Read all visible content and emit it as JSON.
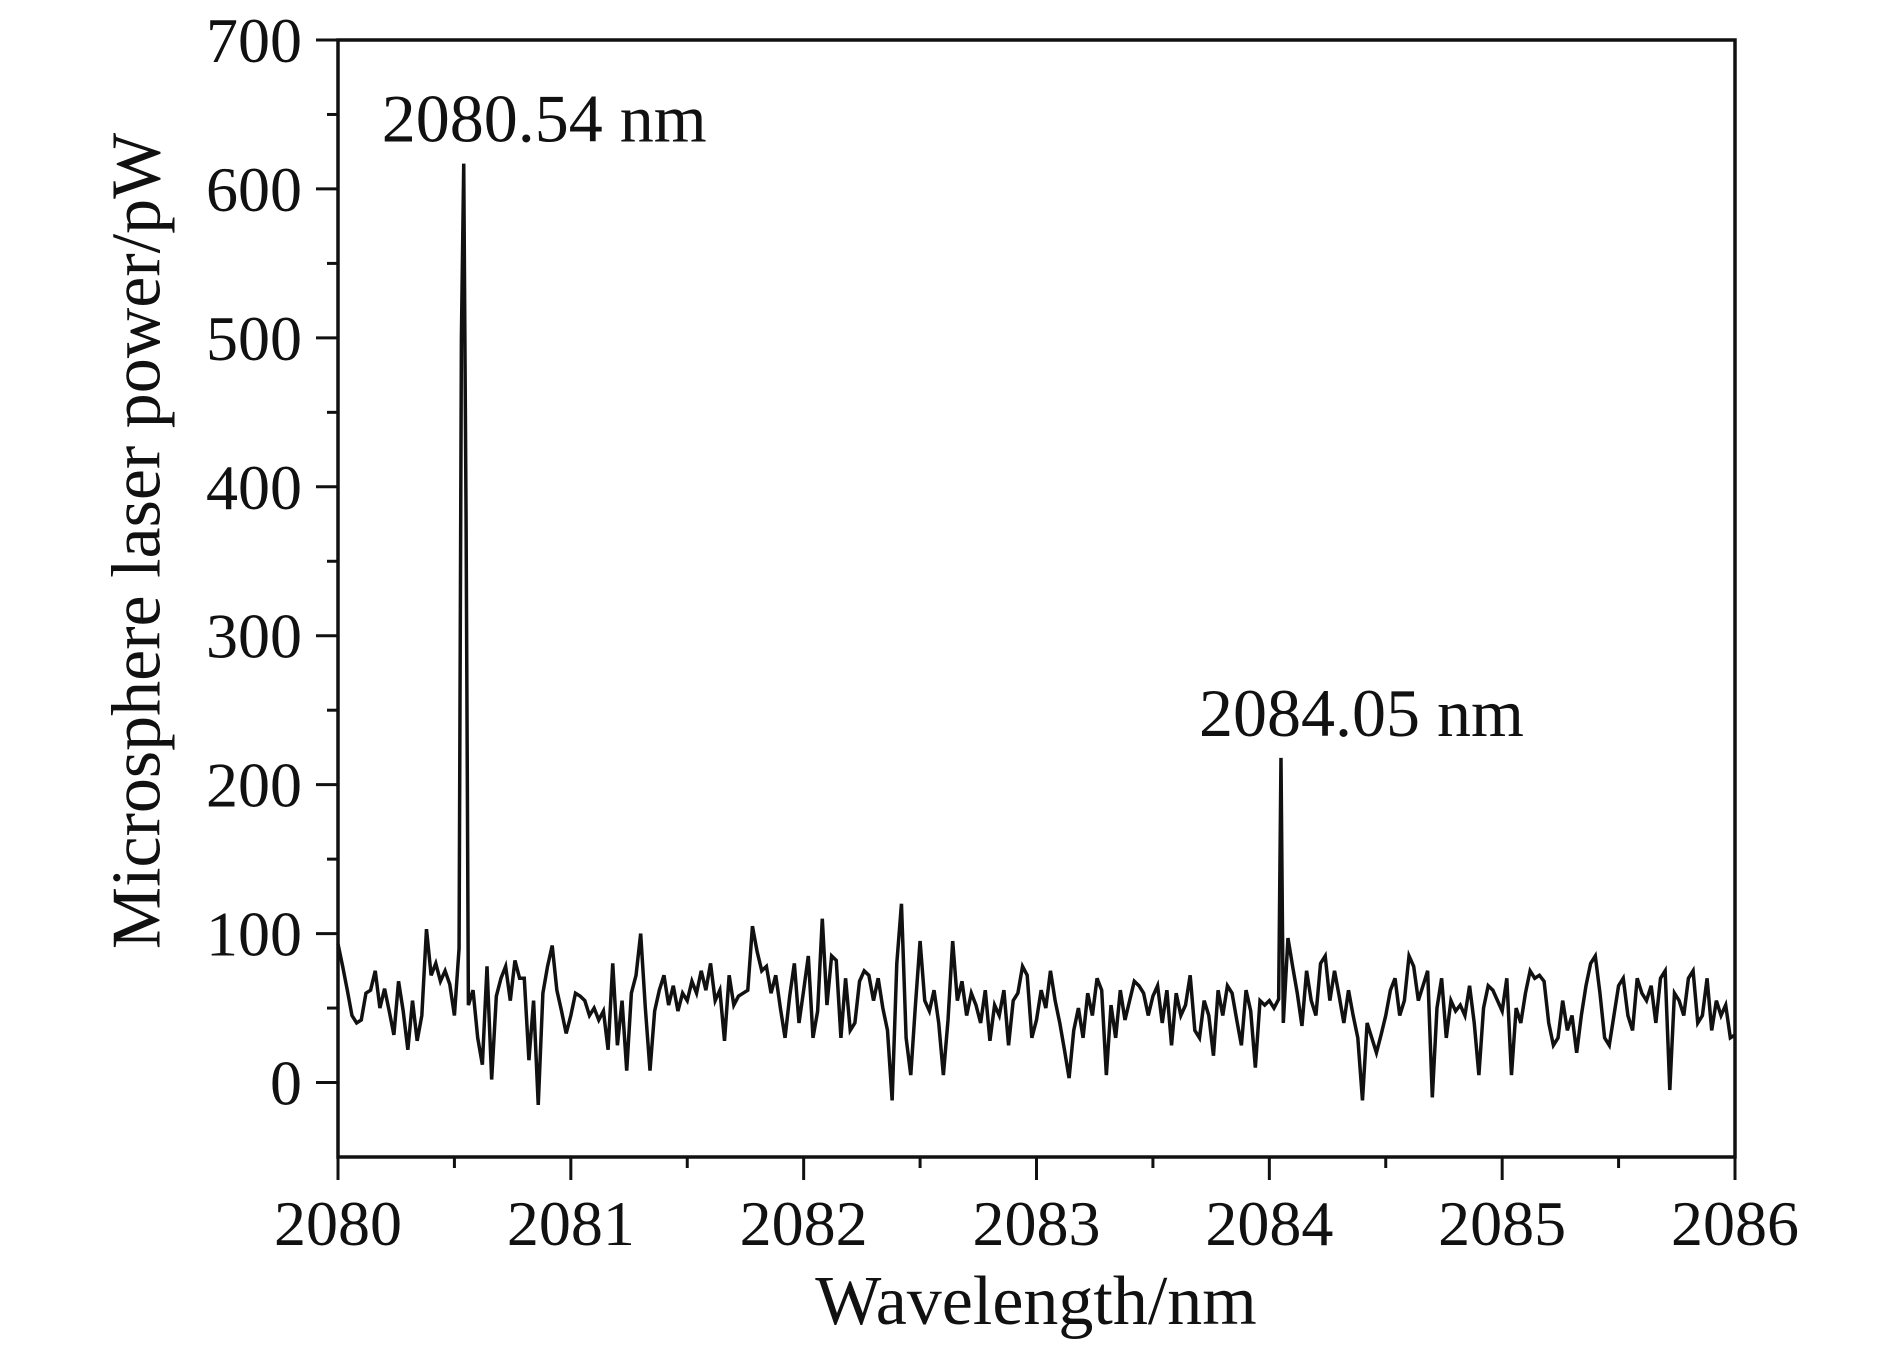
{
  "chart_data": {
    "type": "line",
    "title": "",
    "xlabel": "Wavelength/nm",
    "ylabel": "Microsphere laser power/pW",
    "xlim": [
      2080,
      2086
    ],
    "ylim": [
      -50,
      700
    ],
    "xticks": [
      2080,
      2081,
      2082,
      2083,
      2084,
      2085,
      2086
    ],
    "yticks": [
      0,
      100,
      200,
      300,
      400,
      500,
      600,
      700
    ],
    "grid": false,
    "legend": "none",
    "line_color": "#111111",
    "annotations": [
      {
        "text": "2080.54 nm",
        "x": 2080.54,
        "y": 617
      },
      {
        "text": "2084.05 nm",
        "x": 2084.05,
        "y": 218
      }
    ],
    "series": [
      {
        "points": [
          [
            2080.0,
            93
          ],
          [
            2080.02,
            78
          ],
          [
            2080.04,
            62
          ],
          [
            2080.06,
            45
          ],
          [
            2080.08,
            40
          ],
          [
            2080.1,
            42
          ],
          [
            2080.12,
            60
          ],
          [
            2080.14,
            62
          ],
          [
            2080.16,
            75
          ],
          [
            2080.18,
            50
          ],
          [
            2080.2,
            63
          ],
          [
            2080.22,
            48
          ],
          [
            2080.24,
            32
          ],
          [
            2080.26,
            68
          ],
          [
            2080.28,
            48
          ],
          [
            2080.3,
            22
          ],
          [
            2080.32,
            55
          ],
          [
            2080.34,
            28
          ],
          [
            2080.36,
            45
          ],
          [
            2080.38,
            103
          ],
          [
            2080.4,
            72
          ],
          [
            2080.42,
            80
          ],
          [
            2080.44,
            68
          ],
          [
            2080.46,
            75
          ],
          [
            2080.48,
            66
          ],
          [
            2080.5,
            45
          ],
          [
            2080.52,
            90
          ],
          [
            2080.53,
            500
          ],
          [
            2080.54,
            617
          ],
          [
            2080.55,
            380
          ],
          [
            2080.56,
            52
          ],
          [
            2080.58,
            62
          ],
          [
            2080.6,
            30
          ],
          [
            2080.62,
            12
          ],
          [
            2080.64,
            78
          ],
          [
            2080.66,
            2
          ],
          [
            2080.68,
            58
          ],
          [
            2080.7,
            70
          ],
          [
            2080.72,
            78
          ],
          [
            2080.74,
            55
          ],
          [
            2080.76,
            82
          ],
          [
            2080.78,
            70
          ],
          [
            2080.8,
            70
          ],
          [
            2080.82,
            15
          ],
          [
            2080.84,
            55
          ],
          [
            2080.86,
            -15
          ],
          [
            2080.88,
            60
          ],
          [
            2080.9,
            78
          ],
          [
            2080.92,
            92
          ],
          [
            2080.94,
            62
          ],
          [
            2080.96,
            48
          ],
          [
            2080.98,
            33
          ],
          [
            2081.0,
            45
          ],
          [
            2081.02,
            60
          ],
          [
            2081.04,
            58
          ],
          [
            2081.06,
            55
          ],
          [
            2081.08,
            45
          ],
          [
            2081.1,
            50
          ],
          [
            2081.12,
            42
          ],
          [
            2081.14,
            48
          ],
          [
            2081.16,
            22
          ],
          [
            2081.18,
            80
          ],
          [
            2081.2,
            25
          ],
          [
            2081.22,
            55
          ],
          [
            2081.24,
            8
          ],
          [
            2081.26,
            60
          ],
          [
            2081.28,
            72
          ],
          [
            2081.3,
            100
          ],
          [
            2081.32,
            50
          ],
          [
            2081.34,
            8
          ],
          [
            2081.36,
            48
          ],
          [
            2081.38,
            62
          ],
          [
            2081.4,
            72
          ],
          [
            2081.42,
            52
          ],
          [
            2081.44,
            65
          ],
          [
            2081.46,
            48
          ],
          [
            2081.48,
            60
          ],
          [
            2081.5,
            55
          ],
          [
            2081.52,
            68
          ],
          [
            2081.54,
            60
          ],
          [
            2081.56,
            75
          ],
          [
            2081.58,
            62
          ],
          [
            2081.6,
            80
          ],
          [
            2081.62,
            55
          ],
          [
            2081.64,
            62
          ],
          [
            2081.66,
            28
          ],
          [
            2081.68,
            72
          ],
          [
            2081.7,
            52
          ],
          [
            2081.72,
            58
          ],
          [
            2081.74,
            60
          ],
          [
            2081.76,
            62
          ],
          [
            2081.78,
            105
          ],
          [
            2081.8,
            88
          ],
          [
            2081.82,
            75
          ],
          [
            2081.84,
            78
          ],
          [
            2081.86,
            60
          ],
          [
            2081.88,
            72
          ],
          [
            2081.9,
            50
          ],
          [
            2081.92,
            30
          ],
          [
            2081.94,
            58
          ],
          [
            2081.96,
            80
          ],
          [
            2081.98,
            40
          ],
          [
            2082.0,
            62
          ],
          [
            2082.02,
            85
          ],
          [
            2082.04,
            30
          ],
          [
            2082.06,
            48
          ],
          [
            2082.08,
            110
          ],
          [
            2082.1,
            52
          ],
          [
            2082.12,
            85
          ],
          [
            2082.14,
            82
          ],
          [
            2082.16,
            30
          ],
          [
            2082.18,
            70
          ],
          [
            2082.2,
            35
          ],
          [
            2082.22,
            40
          ],
          [
            2082.24,
            68
          ],
          [
            2082.26,
            75
          ],
          [
            2082.28,
            72
          ],
          [
            2082.3,
            55
          ],
          [
            2082.32,
            70
          ],
          [
            2082.34,
            50
          ],
          [
            2082.36,
            35
          ],
          [
            2082.38,
            -12
          ],
          [
            2082.4,
            80
          ],
          [
            2082.42,
            120
          ],
          [
            2082.44,
            30
          ],
          [
            2082.46,
            5
          ],
          [
            2082.48,
            52
          ],
          [
            2082.5,
            95
          ],
          [
            2082.52,
            55
          ],
          [
            2082.54,
            48
          ],
          [
            2082.56,
            62
          ],
          [
            2082.58,
            40
          ],
          [
            2082.6,
            5
          ],
          [
            2082.62,
            42
          ],
          [
            2082.64,
            95
          ],
          [
            2082.66,
            55
          ],
          [
            2082.68,
            68
          ],
          [
            2082.7,
            45
          ],
          [
            2082.72,
            60
          ],
          [
            2082.74,
            52
          ],
          [
            2082.76,
            40
          ],
          [
            2082.78,
            62
          ],
          [
            2082.8,
            28
          ],
          [
            2082.82,
            52
          ],
          [
            2082.84,
            45
          ],
          [
            2082.86,
            62
          ],
          [
            2082.88,
            25
          ],
          [
            2082.9,
            55
          ],
          [
            2082.92,
            60
          ],
          [
            2082.94,
            78
          ],
          [
            2082.96,
            72
          ],
          [
            2082.98,
            30
          ],
          [
            2083.0,
            42
          ],
          [
            2083.02,
            62
          ],
          [
            2083.04,
            50
          ],
          [
            2083.06,
            75
          ],
          [
            2083.08,
            55
          ],
          [
            2083.1,
            40
          ],
          [
            2083.12,
            22
          ],
          [
            2083.14,
            3
          ],
          [
            2083.16,
            35
          ],
          [
            2083.18,
            50
          ],
          [
            2083.2,
            30
          ],
          [
            2083.22,
            60
          ],
          [
            2083.24,
            45
          ],
          [
            2083.26,
            70
          ],
          [
            2083.28,
            62
          ],
          [
            2083.3,
            5
          ],
          [
            2083.32,
            52
          ],
          [
            2083.34,
            30
          ],
          [
            2083.36,
            62
          ],
          [
            2083.38,
            42
          ],
          [
            2083.4,
            55
          ],
          [
            2083.42,
            68
          ],
          [
            2083.44,
            65
          ],
          [
            2083.46,
            60
          ],
          [
            2083.48,
            45
          ],
          [
            2083.5,
            58
          ],
          [
            2083.52,
            65
          ],
          [
            2083.54,
            40
          ],
          [
            2083.56,
            62
          ],
          [
            2083.58,
            25
          ],
          [
            2083.6,
            60
          ],
          [
            2083.62,
            45
          ],
          [
            2083.64,
            52
          ],
          [
            2083.66,
            72
          ],
          [
            2083.68,
            35
          ],
          [
            2083.7,
            30
          ],
          [
            2083.72,
            55
          ],
          [
            2083.74,
            45
          ],
          [
            2083.76,
            18
          ],
          [
            2083.78,
            62
          ],
          [
            2083.8,
            45
          ],
          [
            2083.82,
            65
          ],
          [
            2083.84,
            60
          ],
          [
            2083.86,
            42
          ],
          [
            2083.88,
            25
          ],
          [
            2083.9,
            62
          ],
          [
            2083.92,
            48
          ],
          [
            2083.94,
            10
          ],
          [
            2083.96,
            55
          ],
          [
            2083.98,
            52
          ],
          [
            2084.0,
            55
          ],
          [
            2084.02,
            50
          ],
          [
            2084.04,
            56
          ],
          [
            2084.05,
            218
          ],
          [
            2084.06,
            40
          ],
          [
            2084.08,
            97
          ],
          [
            2084.1,
            78
          ],
          [
            2084.12,
            60
          ],
          [
            2084.14,
            38
          ],
          [
            2084.16,
            75
          ],
          [
            2084.18,
            55
          ],
          [
            2084.2,
            45
          ],
          [
            2084.22,
            80
          ],
          [
            2084.24,
            85
          ],
          [
            2084.26,
            55
          ],
          [
            2084.28,
            75
          ],
          [
            2084.3,
            58
          ],
          [
            2084.32,
            40
          ],
          [
            2084.34,
            62
          ],
          [
            2084.36,
            45
          ],
          [
            2084.38,
            30
          ],
          [
            2084.4,
            -12
          ],
          [
            2084.42,
            40
          ],
          [
            2084.44,
            30
          ],
          [
            2084.46,
            20
          ],
          [
            2084.48,
            32
          ],
          [
            2084.5,
            45
          ],
          [
            2084.52,
            62
          ],
          [
            2084.54,
            70
          ],
          [
            2084.56,
            45
          ],
          [
            2084.58,
            55
          ],
          [
            2084.6,
            85
          ],
          [
            2084.62,
            78
          ],
          [
            2084.64,
            55
          ],
          [
            2084.66,
            65
          ],
          [
            2084.68,
            75
          ],
          [
            2084.7,
            -10
          ],
          [
            2084.72,
            50
          ],
          [
            2084.74,
            70
          ],
          [
            2084.76,
            30
          ],
          [
            2084.78,
            55
          ],
          [
            2084.8,
            48
          ],
          [
            2084.82,
            52
          ],
          [
            2084.84,
            45
          ],
          [
            2084.86,
            65
          ],
          [
            2084.88,
            40
          ],
          [
            2084.9,
            5
          ],
          [
            2084.92,
            50
          ],
          [
            2084.94,
            65
          ],
          [
            2084.96,
            62
          ],
          [
            2084.98,
            55
          ],
          [
            2085.0,
            48
          ],
          [
            2085.02,
            70
          ],
          [
            2085.04,
            5
          ],
          [
            2085.06,
            50
          ],
          [
            2085.08,
            40
          ],
          [
            2085.1,
            60
          ],
          [
            2085.12,
            75
          ],
          [
            2085.14,
            70
          ],
          [
            2085.16,
            72
          ],
          [
            2085.18,
            68
          ],
          [
            2085.2,
            40
          ],
          [
            2085.22,
            25
          ],
          [
            2085.24,
            30
          ],
          [
            2085.26,
            55
          ],
          [
            2085.28,
            35
          ],
          [
            2085.3,
            45
          ],
          [
            2085.32,
            20
          ],
          [
            2085.34,
            45
          ],
          [
            2085.36,
            65
          ],
          [
            2085.38,
            80
          ],
          [
            2085.4,
            85
          ],
          [
            2085.42,
            60
          ],
          [
            2085.44,
            30
          ],
          [
            2085.46,
            25
          ],
          [
            2085.48,
            45
          ],
          [
            2085.5,
            65
          ],
          [
            2085.52,
            70
          ],
          [
            2085.54,
            45
          ],
          [
            2085.56,
            35
          ],
          [
            2085.58,
            70
          ],
          [
            2085.6,
            60
          ],
          [
            2085.62,
            55
          ],
          [
            2085.64,
            65
          ],
          [
            2085.66,
            40
          ],
          [
            2085.68,
            70
          ],
          [
            2085.7,
            75
          ],
          [
            2085.72,
            -5
          ],
          [
            2085.74,
            60
          ],
          [
            2085.76,
            55
          ],
          [
            2085.78,
            45
          ],
          [
            2085.8,
            70
          ],
          [
            2085.82,
            75
          ],
          [
            2085.84,
            40
          ],
          [
            2085.86,
            45
          ],
          [
            2085.88,
            70
          ],
          [
            2085.9,
            35
          ],
          [
            2085.92,
            55
          ],
          [
            2085.94,
            45
          ],
          [
            2085.96,
            52
          ],
          [
            2085.98,
            30
          ],
          [
            2086.0,
            32
          ]
        ]
      }
    ]
  }
}
